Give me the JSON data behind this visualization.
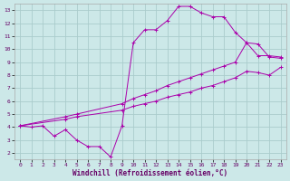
{
  "xlabel": "Windchill (Refroidissement éolien,°C)",
  "xlim": [
    -0.5,
    23.5
  ],
  "ylim": [
    1.5,
    13.5
  ],
  "yticks": [
    2,
    3,
    4,
    5,
    6,
    7,
    8,
    9,
    10,
    11,
    12,
    13
  ],
  "xticks": [
    0,
    1,
    2,
    3,
    4,
    5,
    6,
    7,
    8,
    9,
    10,
    11,
    12,
    13,
    14,
    15,
    16,
    17,
    18,
    19,
    20,
    21,
    22,
    23
  ],
  "background_color": "#cce8e8",
  "grid_color": "#aacccc",
  "line_color": "#aa00aa",
  "line1_x": [
    0,
    1,
    2,
    3,
    4,
    5,
    6,
    7,
    8,
    9,
    10,
    11,
    12,
    13,
    14,
    15,
    16,
    17,
    18,
    19,
    20,
    21,
    22,
    23
  ],
  "line1_y": [
    4.1,
    4.0,
    4.1,
    3.3,
    3.8,
    3.0,
    2.5,
    2.5,
    1.7,
    4.1,
    10.5,
    11.5,
    11.5,
    12.2,
    13.3,
    13.3,
    12.8,
    12.5,
    12.5,
    11.3,
    10.5,
    9.5,
    9.5,
    9.4
  ],
  "line2_x": [
    0,
    4,
    5,
    9,
    10,
    11,
    12,
    13,
    14,
    15,
    16,
    17,
    18,
    19,
    20,
    21,
    22,
    23
  ],
  "line2_y": [
    4.1,
    4.8,
    5.0,
    5.8,
    6.2,
    6.5,
    6.8,
    7.2,
    7.5,
    7.8,
    8.1,
    8.4,
    8.7,
    9.0,
    10.5,
    10.4,
    9.4,
    9.3
  ],
  "line3_x": [
    0,
    4,
    5,
    9,
    10,
    11,
    12,
    13,
    14,
    15,
    16,
    17,
    18,
    19,
    20,
    21,
    22,
    23
  ],
  "line3_y": [
    4.1,
    4.6,
    4.8,
    5.3,
    5.6,
    5.8,
    6.0,
    6.3,
    6.5,
    6.7,
    7.0,
    7.2,
    7.5,
    7.8,
    8.3,
    8.2,
    8.0,
    8.6
  ],
  "marker": "+",
  "markersize": 2.5,
  "linewidth": 0.7
}
